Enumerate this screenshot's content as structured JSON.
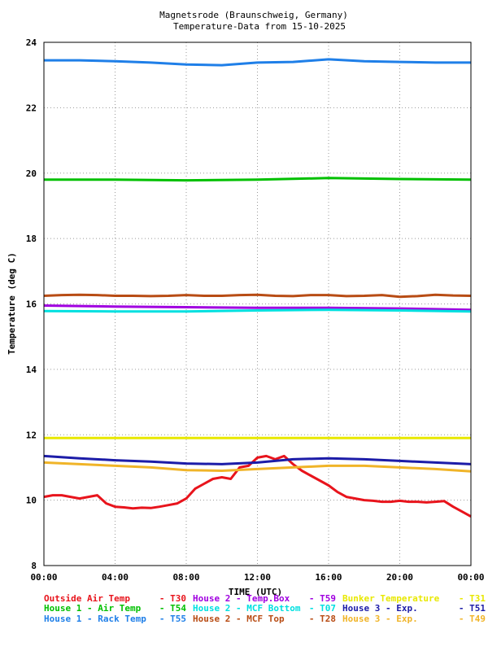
{
  "chart_data": {
    "type": "line",
    "title": "Magnetsrode (Braunschweig, Germany)",
    "subtitle": "Temperature-Data from 15-10-2025",
    "xlabel": "TIME (UTC)",
    "ylabel": "Temperature (deg C)",
    "xlim": [
      0,
      24
    ],
    "ylim": [
      8,
      24
    ],
    "grid": true,
    "x_ticks": [
      0,
      4,
      8,
      12,
      16,
      20,
      24
    ],
    "x_tick_labels": [
      "00:00",
      "04:00",
      "08:00",
      "12:00",
      "16:00",
      "20:00",
      "00:00"
    ],
    "y_ticks": [
      8,
      10,
      12,
      14,
      16,
      18,
      20,
      22,
      24
    ],
    "y_tick_labels": [
      "8",
      "10",
      "12",
      "14",
      "16",
      "18",
      "20",
      "22",
      "24"
    ],
    "series": [
      {
        "name": "Outside Air Temp",
        "code": "T30",
        "color": "#e8141c",
        "x": [
          0,
          0.5,
          1,
          1.5,
          2,
          2.5,
          3,
          3.5,
          4,
          4.5,
          5,
          5.5,
          6,
          6.5,
          7,
          7.5,
          8,
          8.5,
          9,
          9.5,
          10,
          10.5,
          11,
          11.5,
          12,
          12.5,
          13,
          13.5,
          14,
          14.5,
          15,
          15.5,
          16,
          16.5,
          17,
          17.5,
          18,
          18.5,
          19,
          19.5,
          20,
          20.5,
          21,
          21.5,
          22,
          22.5,
          23,
          23.5,
          24
        ],
        "y": [
          10.1,
          10.15,
          10.15,
          10.1,
          10.05,
          10.1,
          10.15,
          9.9,
          9.8,
          9.78,
          9.75,
          9.77,
          9.76,
          9.8,
          9.85,
          9.9,
          10.05,
          10.35,
          10.5,
          10.65,
          10.7,
          10.65,
          11.0,
          11.05,
          11.3,
          11.35,
          11.25,
          11.35,
          11.1,
          10.9,
          10.75,
          10.6,
          10.45,
          10.25,
          10.1,
          10.05,
          10.0,
          9.98,
          9.95,
          9.95,
          9.98,
          9.95,
          9.95,
          9.93,
          9.95,
          9.97,
          9.8,
          9.65,
          9.5
        ]
      },
      {
        "name": "House 1 - Air  Temp",
        "code": "T54",
        "color": "#00c000",
        "x": [
          0,
          4,
          8,
          12,
          16,
          20,
          24
        ],
        "y": [
          19.8,
          19.8,
          19.78,
          19.8,
          19.85,
          19.82,
          19.8
        ]
      },
      {
        "name": "House 1 - Rack Temp",
        "code": "T55",
        "color": "#1f7fe8",
        "x": [
          0,
          2,
          4,
          6,
          8,
          10,
          12,
          14,
          16,
          18,
          20,
          22,
          24
        ],
        "y": [
          23.45,
          23.45,
          23.42,
          23.38,
          23.32,
          23.3,
          23.38,
          23.4,
          23.48,
          23.42,
          23.4,
          23.38,
          23.38
        ]
      },
      {
        "name": "House 2 - Temp.Box",
        "code": "T59",
        "color": "#a000e0",
        "x": [
          0,
          4,
          8,
          12,
          16,
          20,
          24
        ],
        "y": [
          15.95,
          15.92,
          15.9,
          15.88,
          15.88,
          15.86,
          15.82
        ]
      },
      {
        "name": "House 2 - MCF Bottom",
        "code": "T07",
        "color": "#00e0e0",
        "x": [
          0,
          4,
          8,
          12,
          16,
          20,
          24
        ],
        "y": [
          15.78,
          15.77,
          15.77,
          15.8,
          15.82,
          15.8,
          15.77
        ]
      },
      {
        "name": "House 2 - MCF Top",
        "code": "T28",
        "color": "#b84c14",
        "x": [
          0,
          1,
          2,
          3,
          4,
          5,
          6,
          7,
          8,
          9,
          10,
          11,
          12,
          13,
          14,
          15,
          16,
          17,
          18,
          19,
          20,
          21,
          22,
          23,
          24
        ],
        "y": [
          16.25,
          16.27,
          16.28,
          16.27,
          16.25,
          16.25,
          16.24,
          16.25,
          16.27,
          16.25,
          16.25,
          16.27,
          16.28,
          16.25,
          16.24,
          16.27,
          16.27,
          16.24,
          16.25,
          16.27,
          16.22,
          16.24,
          16.28,
          16.26,
          16.25
        ]
      },
      {
        "name": "Bunker Temperature",
        "code": "T31",
        "color": "#e8e800",
        "x": [
          0,
          4,
          8,
          12,
          16,
          20,
          24
        ],
        "y": [
          11.9,
          11.9,
          11.9,
          11.9,
          11.9,
          11.9,
          11.9
        ]
      },
      {
        "name": "House 3 - Exp.",
        "code": "T51",
        "color": "#1c1ca8",
        "x": [
          0,
          2,
          4,
          6,
          8,
          10,
          12,
          14,
          16,
          18,
          20,
          22,
          24
        ],
        "y": [
          11.35,
          11.28,
          11.22,
          11.18,
          11.12,
          11.1,
          11.15,
          11.25,
          11.28,
          11.25,
          11.2,
          11.15,
          11.1
        ]
      },
      {
        "name": "House 3 - Exp.",
        "code": "T49",
        "color": "#f0b428",
        "x": [
          0,
          2,
          4,
          6,
          8,
          10,
          12,
          14,
          16,
          18,
          20,
          22,
          24
        ],
        "y": [
          11.15,
          11.1,
          11.05,
          11.0,
          10.92,
          10.9,
          10.95,
          11.0,
          11.05,
          11.05,
          11.0,
          10.95,
          10.88
        ]
      }
    ]
  }
}
